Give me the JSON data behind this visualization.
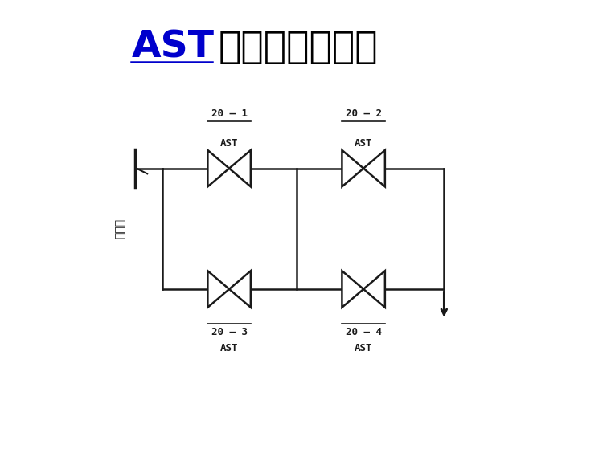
{
  "title_blue": "AST",
  "title_black": "电磁阀连接方式",
  "bg_color": "#ffffff",
  "line_color": "#1a1a1a",
  "title_blue_color": "#0000cc",
  "left_label": "安全油",
  "valve_size": 0.32,
  "xlim": [
    0.5,
    7.0
  ],
  "ylim": [
    0.0,
    5.2
  ]
}
